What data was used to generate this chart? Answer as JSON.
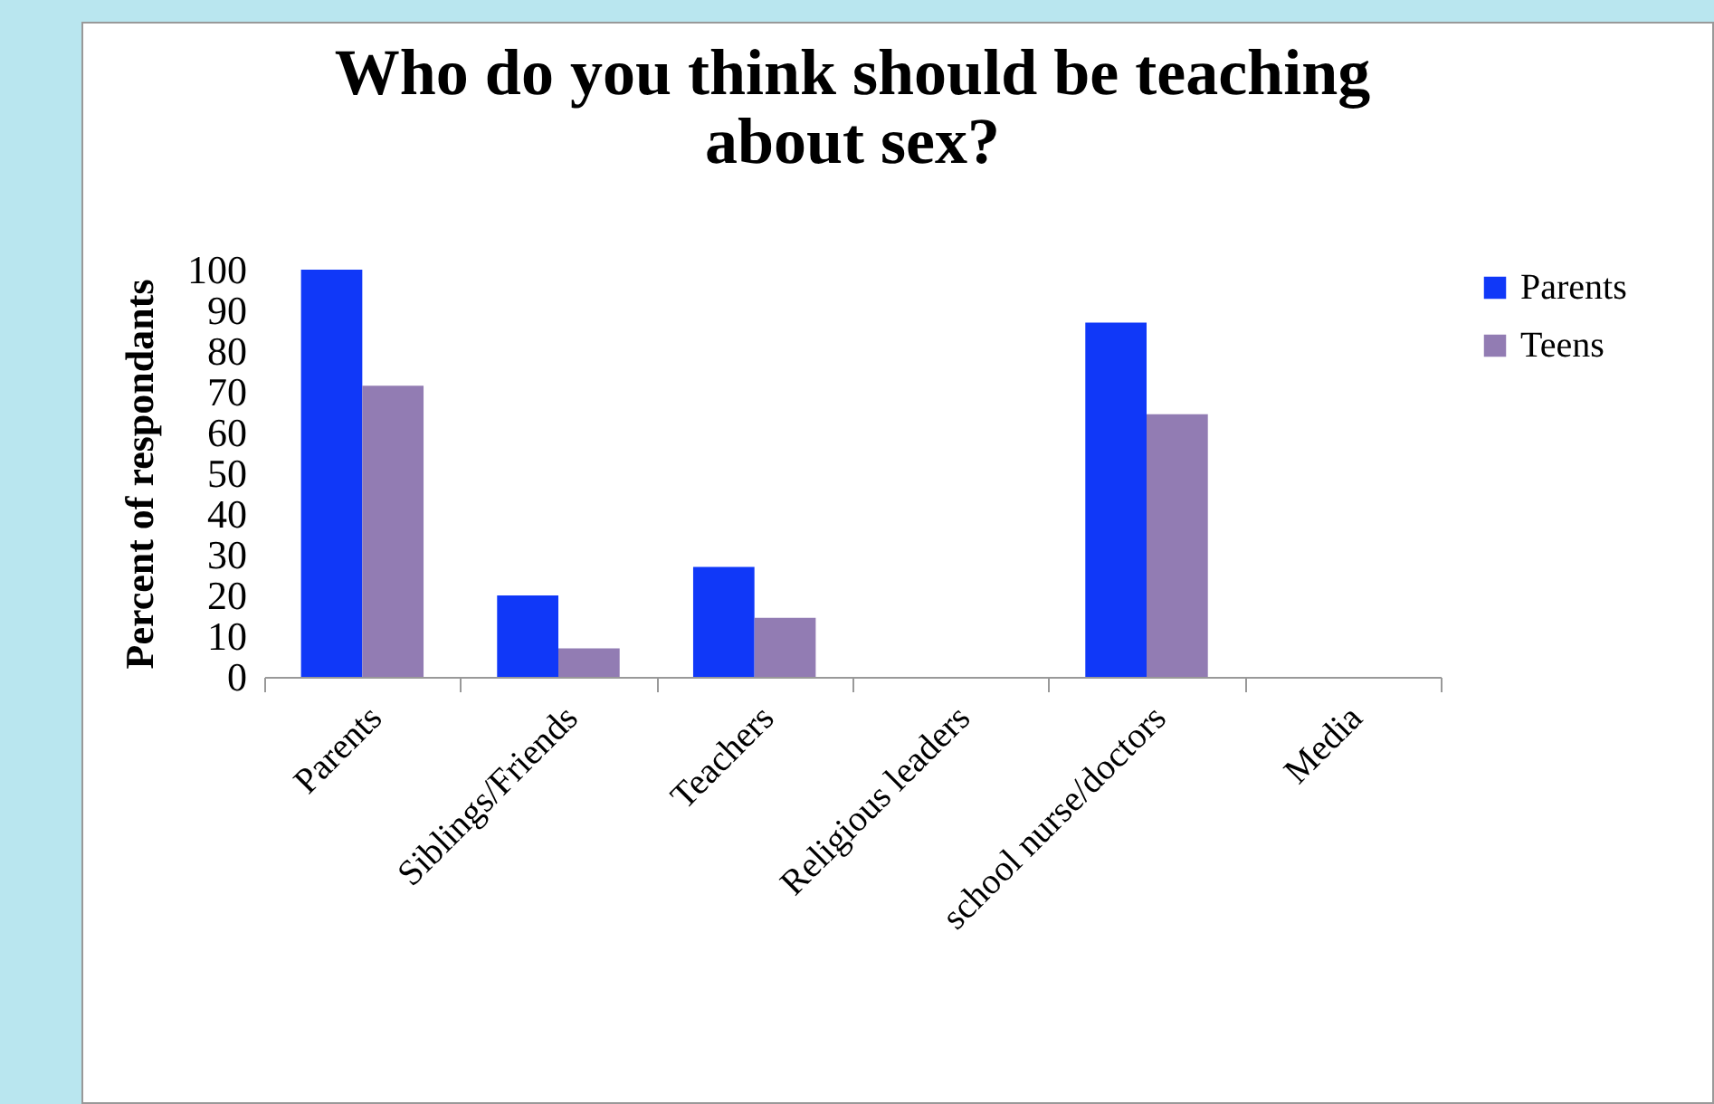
{
  "chart_data": {
    "type": "bar",
    "title": "Who do you think should be teaching about sex?",
    "ylabel": "Percent of respondants",
    "categories": [
      "Parents",
      "Siblings/Friends",
      "Teachers",
      "Religious leaders",
      "school nurse/doctors",
      "Media"
    ],
    "series": [
      {
        "name": "Parents",
        "color": "#1038f8",
        "values": [
          100,
          20,
          27,
          0,
          87,
          0
        ]
      },
      {
        "name": "Teens",
        "color": "#927cb3",
        "values": [
          71.5,
          7,
          14.5,
          0,
          64.5,
          0
        ]
      }
    ],
    "ylim": [
      0,
      100
    ],
    "yticks": [
      0,
      10,
      20,
      30,
      40,
      50,
      60,
      70,
      80,
      90,
      100
    ],
    "grid": false,
    "legend": "top right"
  }
}
